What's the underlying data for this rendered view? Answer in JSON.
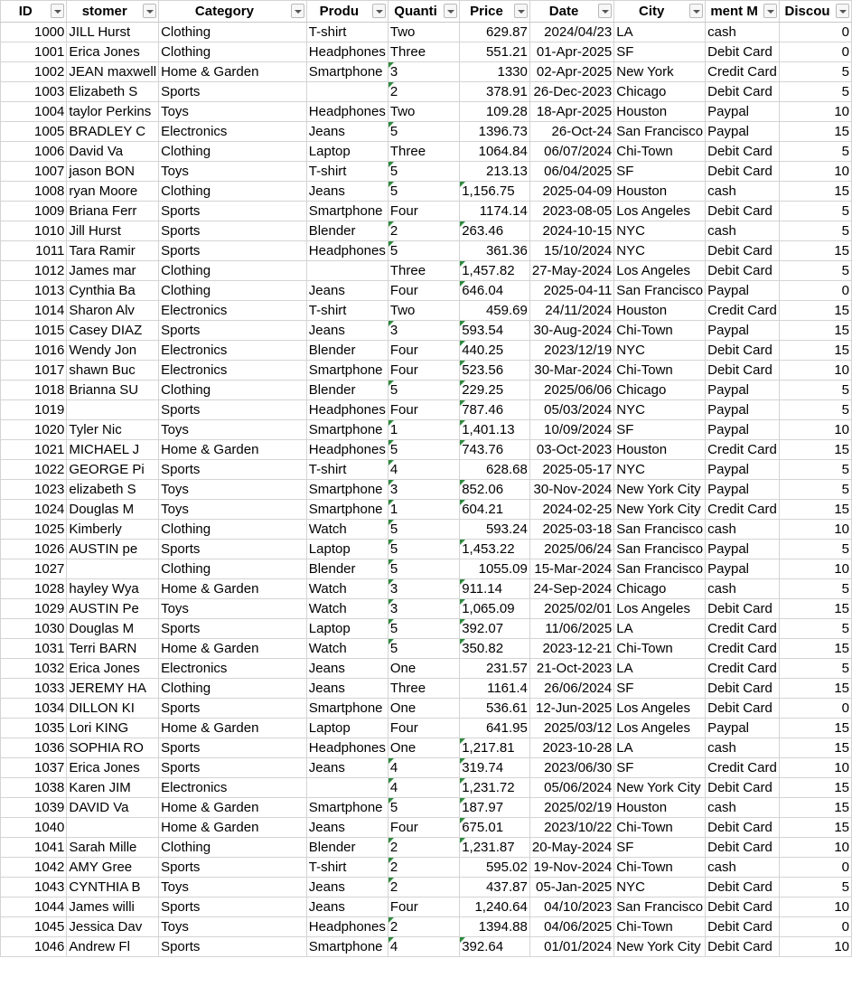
{
  "columns": [
    {
      "key": "id",
      "label": "ID",
      "align": "num",
      "width": 84
    },
    {
      "key": "customer",
      "label": "stomer",
      "align": "txt",
      "width": 82
    },
    {
      "key": "category",
      "label": "Category",
      "align": "txt",
      "width": 179
    },
    {
      "key": "product",
      "label": "Produ",
      "align": "txt",
      "width": 82
    },
    {
      "key": "quantity",
      "label": "Quanti",
      "align": "txt",
      "width": 82
    },
    {
      "key": "price",
      "label": "Price",
      "align": "num",
      "width": 82
    },
    {
      "key": "date",
      "label": "Date",
      "align": "num",
      "width": 92
    },
    {
      "key": "city",
      "label": "City",
      "align": "txt",
      "width": 82
    },
    {
      "key": "payment",
      "label": "ment M",
      "align": "txt",
      "width": 82
    },
    {
      "key": "discount",
      "label": "Discou",
      "align": "num",
      "width": 82
    }
  ],
  "rows": [
    [
      "1000",
      "JILL Hurst",
      "Clothing",
      "T-shirt",
      "Two",
      "629.87",
      "2024/04/23",
      "LA",
      "cash",
      "0"
    ],
    [
      "1001",
      "Erica Jones",
      "Clothing",
      "Headphones",
      "Three",
      "551.21",
      "01-Apr-2025",
      "SF",
      "Debit Card",
      "0"
    ],
    [
      "1002",
      "JEAN maxwell",
      "Home & Garden",
      "Smartphone",
      "3",
      "1330",
      "02-Apr-2025",
      "New York",
      "Credit Card",
      "5"
    ],
    [
      "1003",
      "Elizabeth S",
      "Sports",
      "",
      "2",
      "378.91",
      "26-Dec-2023",
      "Chicago",
      "Debit Card",
      "5"
    ],
    [
      "1004",
      "taylor Perkins",
      "Toys",
      "Headphones",
      "Two",
      "109.28",
      "18-Apr-2025",
      "Houston",
      "Paypal",
      "10"
    ],
    [
      "1005",
      "BRADLEY C",
      "Electronics",
      "Jeans",
      "5",
      "1396.73",
      "26-Oct-24",
      "San Francisco",
      "Paypal",
      "15"
    ],
    [
      "1006",
      " David   Va",
      "Clothing",
      "Laptop",
      "Three",
      "1064.84",
      "06/07/2024",
      "Chi-Town",
      "Debit Card",
      "5"
    ],
    [
      "1007",
      "jason BON",
      "Toys",
      "T-shirt",
      "5",
      "213.13",
      "06/04/2025",
      "SF",
      "Debit Card",
      "10"
    ],
    [
      "1008",
      "ryan Moore",
      "Clothing",
      "Jeans",
      "5",
      "1,156.75",
      "2025-04-09",
      "Houston",
      "cash",
      "15"
    ],
    [
      "1009",
      "Briana Ferr",
      "Sports",
      "Smartphone",
      "Four",
      "1174.14",
      "2023-08-05",
      "Los Angeles",
      "Debit Card",
      "5"
    ],
    [
      "1010",
      "Jill Hurst",
      "Sports",
      "Blender",
      "2",
      "263.46",
      "2024-10-15",
      "NYC",
      "cash",
      "5"
    ],
    [
      "1011",
      "Tara Ramir",
      "Sports",
      "Headphones",
      "5",
      "361.36",
      "15/10/2024",
      "NYC",
      "Debit Card",
      "15"
    ],
    [
      "1012",
      "James mar",
      "Clothing",
      "",
      "Three",
      "1,457.82",
      "27-May-2024",
      "Los Angeles",
      "Debit Card",
      "5"
    ],
    [
      "1013",
      "Cynthia Ba",
      "Clothing",
      "Jeans",
      "Four",
      "646.04",
      "2025-04-11",
      "San Francisco",
      "Paypal",
      "0"
    ],
    [
      "1014",
      "Sharon Alv",
      "Electronics",
      "T-shirt",
      "Two",
      "459.69",
      "24/11/2024",
      "Houston",
      "Credit Card",
      "15"
    ],
    [
      "1015",
      "Casey DIAZ",
      "Sports",
      "Jeans",
      "3",
      "593.54",
      "30-Aug-2024",
      "Chi-Town",
      "Paypal",
      "15"
    ],
    [
      "1016",
      "Wendy Jon",
      "Electronics",
      "Blender",
      "Four",
      "440.25",
      "2023/12/19",
      "NYC",
      "Debit Card",
      "15"
    ],
    [
      "1017",
      "shawn Buc",
      "Electronics",
      "Smartphone",
      "Four",
      "523.56",
      "30-Mar-2024",
      "Chi-Town",
      "Debit Card",
      "10"
    ],
    [
      "1018",
      "Brianna SU",
      "Clothing",
      "Blender",
      "5",
      "229.25",
      "2025/06/06",
      "Chicago",
      "Paypal",
      "5"
    ],
    [
      "1019",
      "",
      "Sports",
      "Headphones",
      "Four",
      "787.46",
      "05/03/2024",
      "NYC",
      "Paypal",
      "5"
    ],
    [
      "1020",
      " Tyler   Nic",
      "Toys",
      "Smartphone",
      "1",
      "1,401.13",
      "10/09/2024",
      "SF",
      "Paypal",
      "10"
    ],
    [
      "1021",
      "MICHAEL J",
      "Home & Garden",
      "Headphones",
      "5",
      "743.76",
      "03-Oct-2023",
      "Houston",
      "Credit Card",
      "15"
    ],
    [
      "1022",
      "GEORGE Pi",
      "Sports",
      "T-shirt",
      "4",
      "628.68",
      "2025-05-17",
      "NYC",
      "Paypal",
      "5"
    ],
    [
      "1023",
      "elizabeth S",
      "Toys",
      "Smartphone",
      "3",
      "852.06",
      "30-Nov-2024",
      "New York City",
      "Paypal",
      "5"
    ],
    [
      "1024",
      "Douglas M",
      "Toys",
      "Smartphone",
      "1",
      "604.21",
      "2024-02-25",
      "New York City",
      "Credit Card",
      "15"
    ],
    [
      "1025",
      " Kimberly ",
      "Clothing",
      "Watch",
      "5",
      "593.24",
      "2025-03-18",
      "San Francisco",
      "cash",
      "10"
    ],
    [
      "1026",
      "AUSTIN pe",
      "Sports",
      "Laptop",
      "5",
      "1,453.22",
      "2025/06/24",
      "San Francisco",
      "Paypal",
      "5"
    ],
    [
      "1027",
      "",
      "Clothing",
      "Blender",
      "5",
      "1055.09",
      "15-Mar-2024",
      "San Francisco",
      "Paypal",
      "10"
    ],
    [
      "1028",
      "hayley Wya",
      "Home & Garden",
      "Watch",
      "3",
      "911.14",
      "24-Sep-2024",
      "Chicago",
      "cash",
      "5"
    ],
    [
      "1029",
      "AUSTIN Pe",
      "Toys",
      "Watch",
      "3",
      "1,065.09",
      "2025/02/01",
      "Los Angeles",
      "Debit Card",
      "15"
    ],
    [
      "1030",
      "Douglas M",
      "Sports",
      "Laptop",
      "5",
      "392.07",
      "11/06/2025",
      "LA",
      "Credit Card",
      "5"
    ],
    [
      "1031",
      "Terri BARN",
      "Home & Garden",
      "Watch",
      "5",
      "350.82",
      "2023-12-21",
      "Chi-Town",
      "Credit Card",
      "15"
    ],
    [
      "1032",
      "Erica Jones",
      "Electronics",
      "Jeans",
      "One",
      "231.57",
      "21-Oct-2023",
      "LA",
      "Credit Card",
      "5"
    ],
    [
      "1033",
      "JEREMY HA",
      "Clothing",
      "Jeans",
      "Three",
      "1161.4",
      "26/06/2024",
      "SF",
      "Debit Card",
      "15"
    ],
    [
      "1034",
      "DILLON KI",
      "Sports",
      "Smartphone",
      "One",
      "536.61",
      "12-Jun-2025",
      "Los Angeles",
      "Debit Card",
      "0"
    ],
    [
      "1035",
      "Lori KING",
      "Home & Garden",
      "Laptop",
      "Four",
      "641.95",
      "2025/03/12",
      "Los Angeles",
      "Paypal",
      "15"
    ],
    [
      "1036",
      "SOPHIA RO",
      "Sports",
      "Headphones",
      "One",
      "1,217.81",
      "2023-10-28",
      "LA",
      "cash",
      "15"
    ],
    [
      "1037",
      "Erica Jones",
      "Sports",
      "Jeans",
      "4",
      "319.74",
      "2023/06/30",
      "SF",
      "Credit Card",
      "10"
    ],
    [
      "1038",
      " Karen  JIM",
      "Electronics",
      "",
      "4",
      "1,231.72",
      "05/06/2024",
      "New York City",
      "Debit Card",
      "15"
    ],
    [
      "1039",
      " DAVID  Va",
      "Home & Garden",
      "Smartphone",
      "5",
      "187.97",
      "2025/02/19",
      "Houston",
      "cash",
      "15"
    ],
    [
      "1040",
      "",
      "Home & Garden",
      "Jeans",
      "Four",
      "675.01",
      "2023/10/22",
      "Chi-Town",
      "Debit Card",
      "15"
    ],
    [
      "1041",
      "Sarah Mille",
      "Clothing",
      "Blender",
      "2",
      "1,231.87",
      "20-May-2024",
      "SF",
      "Debit Card",
      "10"
    ],
    [
      "1042",
      "AMY  Gree",
      "Sports",
      "T-shirt",
      "2",
      "595.02",
      "19-Nov-2024",
      "Chi-Town",
      "cash",
      "0"
    ],
    [
      "1043",
      "CYNTHIA B",
      "Toys",
      "Jeans",
      "2",
      "437.87",
      "05-Jan-2025",
      "NYC",
      "Debit Card",
      "5"
    ],
    [
      "1044",
      "James willi",
      "Sports",
      "Jeans",
      "Four",
      "1,240.64",
      "04/10/2023",
      "San Francisco",
      "Debit Card",
      "10"
    ],
    [
      "1045",
      "Jessica Dav",
      "Toys",
      "Headphones",
      "2",
      "1394.88",
      "04/06/2025",
      "Chi-Town",
      "Debit Card",
      "0"
    ],
    [
      "1046",
      "Andrew Fl",
      "Sports",
      "Smartphone",
      "4",
      "392.64",
      "01/01/2024",
      "New York City",
      "Debit Card",
      "10"
    ]
  ],
  "flags": {
    "quantity_text_rows": [
      2,
      3,
      5,
      7,
      8,
      10,
      11,
      15,
      18,
      20,
      21,
      22,
      23,
      24,
      25,
      26,
      27,
      28,
      29,
      30,
      31,
      37,
      38,
      39,
      41,
      42,
      43,
      45,
      46
    ],
    "price_text_rows": [
      8,
      10,
      12,
      13,
      15,
      16,
      17,
      18,
      19,
      20,
      21,
      23,
      24,
      26,
      28,
      29,
      30,
      31,
      36,
      37,
      38,
      39,
      40,
      41,
      46
    ],
    "marker_color": "#2e8b3e"
  }
}
